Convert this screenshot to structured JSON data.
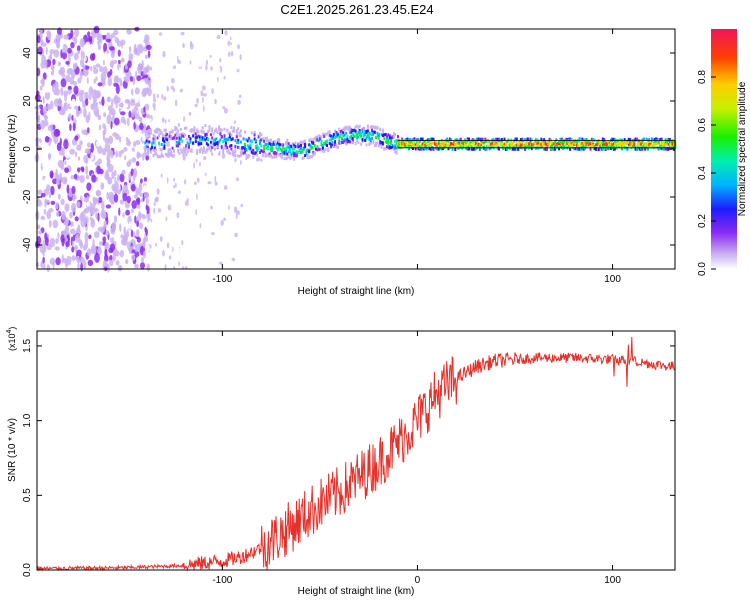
{
  "title": "C2E1.2025.261.23.45.E24",
  "chart_data": [
    {
      "type": "heatmap",
      "xlabel": "Height of straight line (km)",
      "ylabel": "Frequency (Hz)",
      "xlim": [
        -195,
        132
      ],
      "ylim": [
        -50,
        50
      ],
      "xticks": [
        -100,
        0,
        100
      ],
      "xtick_labels": [
        "-100",
        "",
        "100"
      ],
      "yticks": [
        -40,
        -20,
        0,
        20,
        40
      ],
      "ytick_labels": [
        "-40",
        "-20",
        "0",
        "20",
        "40"
      ],
      "colorbar": {
        "label": "Normalized spectral amplitude",
        "range": [
          0,
          1
        ],
        "ticks": [
          0.0,
          0.2,
          0.4,
          0.6,
          0.8
        ],
        "tick_labels": [
          "0.0",
          "0.2",
          "0.4",
          "0.6",
          "0.8"
        ]
      },
      "ridge": {
        "x": [
          -140,
          -125,
          -110,
          -95,
          -80,
          -70,
          -60,
          -50,
          -40,
          -30,
          -20,
          -15,
          -10,
          0,
          20,
          40,
          60,
          80,
          100,
          132
        ],
        "freq": [
          2,
          3,
          4,
          3,
          1,
          0,
          -1,
          2,
          5,
          6,
          5,
          3,
          2,
          2,
          2,
          2,
          2,
          2,
          2,
          2
        ]
      }
    },
    {
      "type": "line",
      "xlabel": "Height of straight line (km)",
      "ylabel": "SNR (10 * v/v)",
      "yscale_label": "(x10",
      "yscale_exp": "4",
      "xlim": [
        -195,
        132
      ],
      "ylim": [
        0,
        1.6
      ],
      "xticks": [
        -100,
        0,
        100
      ],
      "xtick_labels": [
        "-100",
        "0",
        "100"
      ],
      "yticks": [
        0,
        0.5,
        1.0,
        1.5
      ],
      "ytick_labels": [
        "0.0",
        "0.5",
        "1.0",
        "1.5"
      ],
      "series": [
        {
          "name": "SNR",
          "color": "#e8302a",
          "trend_x": [
            -195,
            -150,
            -120,
            -100,
            -90,
            -80,
            -70,
            -60,
            -50,
            -40,
            -30,
            -20,
            -10,
            0,
            10,
            20,
            30,
            40,
            50,
            60,
            80,
            100,
            110,
            120,
            132
          ],
          "trend_y": [
            0.01,
            0.015,
            0.03,
            0.06,
            0.09,
            0.15,
            0.24,
            0.34,
            0.44,
            0.52,
            0.62,
            0.72,
            0.85,
            1.0,
            1.18,
            1.28,
            1.36,
            1.4,
            1.41,
            1.42,
            1.42,
            1.41,
            1.4,
            1.38,
            1.36
          ]
        }
      ]
    }
  ]
}
